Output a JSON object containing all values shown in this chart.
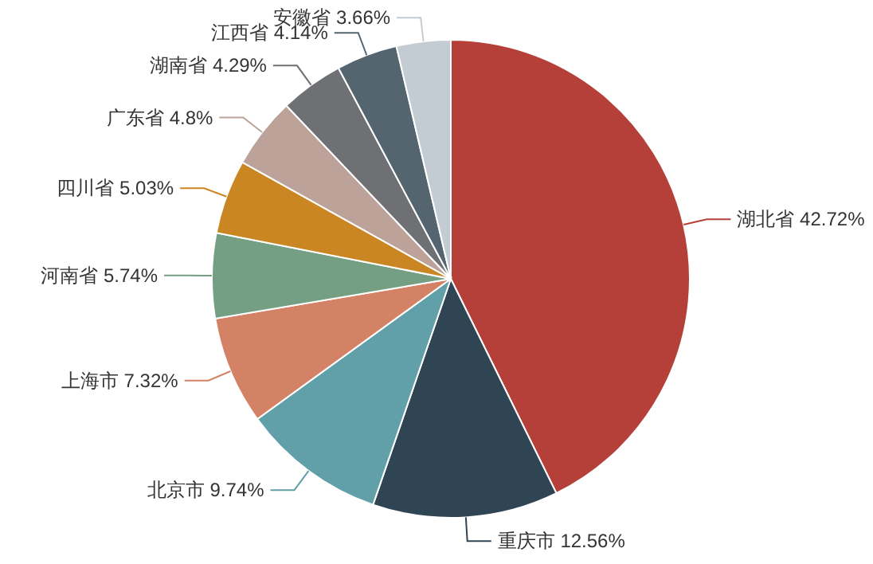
{
  "chart_data": {
    "type": "pie",
    "categories": [
      "湖北省",
      "重庆市",
      "北京市",
      "上海市",
      "河南省",
      "四川省",
      "广东省",
      "湖南省",
      "江西省",
      "安徽省"
    ],
    "values": [
      42.72,
      12.56,
      9.74,
      7.32,
      5.74,
      5.03,
      4.8,
      4.29,
      4.14,
      3.66
    ],
    "value_labels": [
      "42.72%",
      "12.56%",
      "9.74%",
      "7.32%",
      "5.74%",
      "5.03%",
      "4.8%",
      "4.29%",
      "4.14%",
      "3.66%"
    ],
    "colors": [
      "#b5403a",
      "#2f4554",
      "#61a0a8",
      "#d48265",
      "#749f83",
      "#ca8622",
      "#bda29a",
      "#6e7074",
      "#546570",
      "#c4ccd3"
    ],
    "legend": false
  }
}
